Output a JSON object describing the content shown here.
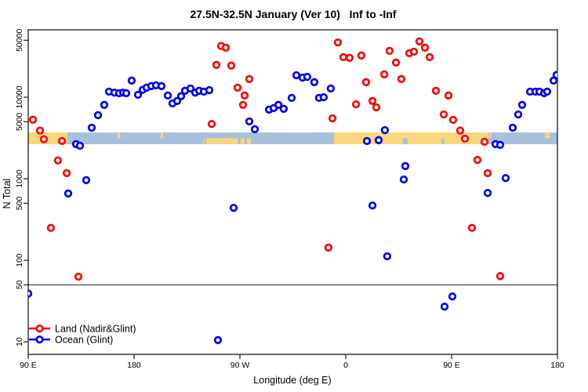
{
  "chart_data": {
    "type": "scatter",
    "title": "27.5N-32.5N January (Ver 10)   Inf to -Inf",
    "xlabel": "Longitude (deg E)",
    "ylabel": "N Total",
    "y_scale": "log",
    "ylim": [
      8,
      65000
    ],
    "x_axis": {
      "start_lon": 90,
      "end_lon": 540,
      "ticks": [
        {
          "label": "90 E",
          "lon": 90
        },
        {
          "label": "180",
          "lon": 180
        },
        {
          "label": "90 W",
          "lon": 270
        },
        {
          "label": "0",
          "lon": 360
        },
        {
          "label": "90 E",
          "lon": 450
        },
        {
          "label": "180",
          "lon": 540
        }
      ]
    },
    "y_ticks": [
      50000,
      10000,
      5000,
      1000,
      500,
      100,
      50,
      10
    ],
    "threshold_value": 50,
    "map_band": {
      "top_value": 3700,
      "bottom_value": 2650,
      "land_color": "#f9d77c",
      "ocean_color": "#a9c0dc",
      "segments": [
        {
          "type": "land",
          "from": 90,
          "to": 123.3
        },
        {
          "type": "ocean",
          "from": 123.3,
          "to": 238.7
        },
        {
          "type": "ocean",
          "from": 238.7,
          "to": 280
        },
        {
          "type": "ocean",
          "from": 280,
          "to": 350
        },
        {
          "type": "land",
          "from": 350,
          "to": 481.3
        },
        {
          "type": "ocean",
          "from": 481.3,
          "to": 540
        }
      ],
      "patches": [
        {
          "type": "land",
          "from": 238.7,
          "to": 279.3,
          "part": "lower"
        },
        {
          "type": "ocean",
          "from": 239.5,
          "to": 241.2,
          "part": "lower"
        },
        {
          "type": "ocean",
          "from": 268.5,
          "to": 270.5,
          "part": "lower"
        },
        {
          "type": "ocean",
          "from": 274.0,
          "to": 276.0,
          "part": "lower"
        },
        {
          "type": "ocean",
          "from": 408.5,
          "to": 412.5,
          "part": "lower"
        },
        {
          "type": "ocean",
          "from": 441.5,
          "to": 443.5,
          "part": "lower"
        },
        {
          "type": "land",
          "from": 166.0,
          "to": 168.0,
          "part": "upper"
        },
        {
          "type": "land",
          "from": 202.5,
          "to": 204.5,
          "part": "upper"
        },
        {
          "type": "land",
          "from": 482.0,
          "to": 483.5,
          "part": "upper"
        },
        {
          "type": "land",
          "from": 529.5,
          "to": 533.5,
          "part": "upper"
        }
      ]
    },
    "legend": [
      {
        "label": "Land (Nadir&Glint)",
        "color": "#ff0000"
      },
      {
        "label": "Ocean (Glint)",
        "color": "#0000ee"
      }
    ],
    "series": [
      {
        "name": "Land (Nadir&Glint)",
        "color": "#ff0000",
        "points": [
          [
            94.0,
            5300
          ],
          [
            100.0,
            3900
          ],
          [
            103.3,
            3050
          ],
          [
            118.7,
            2900
          ],
          [
            115.3,
            1680
          ],
          [
            122.7,
            1170
          ],
          [
            109.3,
            250
          ],
          [
            132.7,
            63
          ],
          [
            246.0,
            4700
          ],
          [
            254.0,
            42500
          ],
          [
            258.0,
            40500
          ],
          [
            250.0,
            24900
          ],
          [
            262.7,
            24400
          ],
          [
            278.0,
            16700
          ],
          [
            268.0,
            13100
          ],
          [
            274.0,
            10500
          ],
          [
            272.7,
            8050
          ],
          [
            345.3,
            143
          ],
          [
            348.7,
            5500
          ],
          [
            353.3,
            47000
          ],
          [
            358.0,
            31000
          ],
          [
            363.3,
            30400
          ],
          [
            368.7,
            8200
          ],
          [
            373.3,
            32500
          ],
          [
            377.3,
            15300
          ],
          [
            382.7,
            9000
          ],
          [
            386.0,
            7500
          ],
          [
            392.7,
            19100
          ],
          [
            397.3,
            37000
          ],
          [
            402.7,
            26600
          ],
          [
            407.3,
            16700
          ],
          [
            414.0,
            34600
          ],
          [
            418.0,
            36200
          ],
          [
            422.7,
            48400
          ],
          [
            427.3,
            40500
          ],
          [
            431.3,
            31000
          ],
          [
            436.7,
            12000
          ],
          [
            443.3,
            6150
          ],
          [
            447.3,
            10500
          ],
          [
            451.3,
            5270
          ],
          [
            457.3,
            3900
          ],
          [
            461.3,
            3100
          ],
          [
            467.3,
            250
          ],
          [
            472.0,
            1700
          ],
          [
            478.0,
            2840
          ],
          [
            480.7,
            1170
          ],
          [
            491.3,
            64
          ]
        ]
      },
      {
        "name": "Ocean (Glint)",
        "color": "#0000ee",
        "points": [
          [
            90.0,
            39
          ],
          [
            124.0,
            660
          ],
          [
            130.7,
            2660
          ],
          [
            134.0,
            2540
          ],
          [
            139.3,
            960
          ],
          [
            144.0,
            4230
          ],
          [
            149.3,
            6020
          ],
          [
            154.7,
            8050
          ],
          [
            158.7,
            11700
          ],
          [
            163.3,
            11400
          ],
          [
            167.3,
            11200
          ],
          [
            170.7,
            11400
          ],
          [
            173.3,
            11200
          ],
          [
            178.0,
            16000
          ],
          [
            183.3,
            10700
          ],
          [
            187.3,
            12300
          ],
          [
            190.7,
            13100
          ],
          [
            194.7,
            13700
          ],
          [
            198.7,
            14000
          ],
          [
            203.3,
            13700
          ],
          [
            208.7,
            10500
          ],
          [
            212.7,
            8400
          ],
          [
            216.7,
            9000
          ],
          [
            220.0,
            10300
          ],
          [
            223.3,
            12000
          ],
          [
            228.0,
            12800
          ],
          [
            232.0,
            11400
          ],
          [
            235.3,
            12000
          ],
          [
            239.3,
            11700
          ],
          [
            244.0,
            12200
          ],
          [
            251.3,
            10.5
          ],
          [
            264.7,
            440
          ],
          [
            278.0,
            5050
          ],
          [
            282.7,
            4050
          ],
          [
            294.7,
            7050
          ],
          [
            298.7,
            7350
          ],
          [
            302.7,
            8050
          ],
          [
            307.3,
            7200
          ],
          [
            314.0,
            9800
          ],
          [
            318.0,
            18600
          ],
          [
            323.3,
            17400
          ],
          [
            327.3,
            17800
          ],
          [
            333.3,
            15300
          ],
          [
            337.3,
            9800
          ],
          [
            341.3,
            10000
          ],
          [
            347.3,
            12800
          ],
          [
            378.0,
            2900
          ],
          [
            388.0,
            2970
          ],
          [
            393.3,
            3950
          ],
          [
            382.7,
            470
          ],
          [
            395.3,
            112
          ],
          [
            409.3,
            980
          ],
          [
            410.7,
            1430
          ],
          [
            444.0,
            27
          ],
          [
            450.7,
            36
          ],
          [
            480.7,
            670
          ],
          [
            487.3,
            2660
          ],
          [
            491.3,
            2600
          ],
          [
            496.0,
            1020
          ],
          [
            502.0,
            4230
          ],
          [
            506.7,
            6150
          ],
          [
            510.0,
            8050
          ],
          [
            516.7,
            11700
          ],
          [
            521.3,
            11700
          ],
          [
            524.7,
            11700
          ],
          [
            528.7,
            11200
          ],
          [
            531.3,
            11700
          ],
          [
            536.7,
            16000
          ],
          [
            539.3,
            18700
          ]
        ]
      }
    ]
  }
}
